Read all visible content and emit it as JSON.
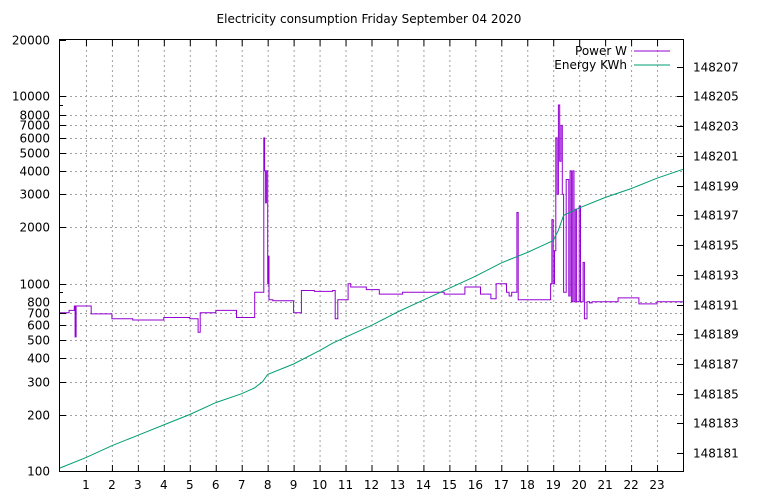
{
  "chart_data": {
    "type": "line",
    "title": "Electricity consumption Friday September 04 2020",
    "xlim": [
      0,
      24
    ],
    "x_ticks": [
      1,
      2,
      3,
      4,
      5,
      6,
      7,
      8,
      9,
      10,
      11,
      12,
      13,
      14,
      15,
      16,
      17,
      18,
      19,
      20,
      21,
      22,
      23
    ],
    "y_axis": {
      "scale": "log",
      "ylim": [
        100,
        20000
      ],
      "ticks": [
        100,
        200,
        300,
        400,
        500,
        600,
        700,
        800,
        1000,
        2000,
        3000,
        4000,
        5000,
        6000,
        7000,
        8000,
        10000,
        20000
      ]
    },
    "y2_axis": {
      "scale": "linear",
      "ylim": [
        148179.8,
        148208.8
      ],
      "ticks": [
        148181,
        148183,
        148185,
        148187,
        148189,
        148191,
        148193,
        148195,
        148197,
        148199,
        148201,
        148203,
        148205,
        148207
      ]
    },
    "grid": true,
    "legend_position": "top-right",
    "series": [
      {
        "name": "Power W",
        "axis": "y",
        "color": "#9400d3",
        "step": true,
        "x": [
          0,
          0.35,
          0.55,
          0.58,
          0.62,
          1.2,
          2.0,
          2.8,
          3.2,
          4.0,
          4.5,
          5.0,
          5.3,
          5.32,
          5.4,
          6.0,
          6.3,
          6.8,
          7.5,
          7.85,
          7.88,
          7.92,
          7.95,
          8.0,
          8.02,
          8.05,
          8.08,
          8.1,
          8.2,
          9.0,
          9.3,
          9.8,
          10.5,
          10.6,
          10.7,
          11.1,
          11.2,
          11.8,
          12.3,
          12.8,
          13.2,
          14.0,
          14.8,
          15.0,
          15.6,
          16.2,
          16.6,
          16.8,
          17.2,
          17.3,
          17.4,
          17.6,
          17.65,
          17.8,
          18.4,
          18.9,
          18.95,
          19.0,
          19.05,
          19.1,
          19.15,
          19.2,
          19.25,
          19.3,
          19.35,
          19.4,
          19.5,
          19.6,
          19.65,
          19.7,
          19.75,
          19.8,
          19.85,
          19.9,
          19.95,
          20.0,
          20.05,
          20.1,
          20.15,
          20.2,
          20.3,
          20.35,
          20.4,
          20.45,
          20.5,
          21.2,
          21.5,
          22.1,
          22.3,
          22.8,
          23.0,
          23.5,
          24.0
        ],
        "values": [
          700,
          720,
          760,
          520,
          760,
          690,
          650,
          640,
          640,
          660,
          660,
          650,
          650,
          550,
          700,
          720,
          720,
          660,
          900,
          6000,
          4000,
          2700,
          4000,
          1000,
          1400,
          820,
          820,
          820,
          810,
          700,
          920,
          910,
          920,
          650,
          820,
          1000,
          960,
          930,
          880,
          880,
          900,
          900,
          880,
          880,
          960,
          880,
          830,
          1000,
          900,
          860,
          900,
          2400,
          820,
          820,
          820,
          1000,
          2200,
          1000,
          1500,
          6000,
          3000,
          9000,
          4500,
          7000,
          3000,
          900,
          3600,
          860,
          4000,
          800,
          4000,
          800,
          2500,
          800,
          800,
          2600,
          800,
          800,
          1300,
          650,
          800,
          800,
          790,
          790,
          800,
          800,
          840,
          840,
          780,
          780,
          800,
          800,
          800
        ]
      },
      {
        "name": "Energy KWh",
        "axis": "y2",
        "color": "#009e73",
        "step": false,
        "x": [
          0,
          1,
          2,
          3,
          4,
          5,
          6,
          7,
          7.5,
          7.8,
          8.0,
          9.0,
          10.0,
          10.5,
          11.0,
          12.0,
          13.0,
          14.0,
          15.0,
          16.0,
          17.0,
          18.0,
          18.5,
          19.0,
          19.2,
          19.4,
          20.0,
          21.0,
          22.0,
          23.0,
          24.0
        ],
        "values": [
          148180.0,
          148180.7,
          148181.5,
          148182.2,
          148182.9,
          148183.6,
          148184.4,
          148185.0,
          148185.4,
          148185.8,
          148186.3,
          148187.0,
          148187.9,
          148188.4,
          148188.8,
          148189.6,
          148190.5,
          148191.3,
          148192.1,
          148192.9,
          148193.8,
          148194.5,
          148194.9,
          148195.3,
          148196.0,
          148197.0,
          148197.5,
          148198.2,
          148198.8,
          148199.5,
          148200.1
        ]
      }
    ]
  }
}
